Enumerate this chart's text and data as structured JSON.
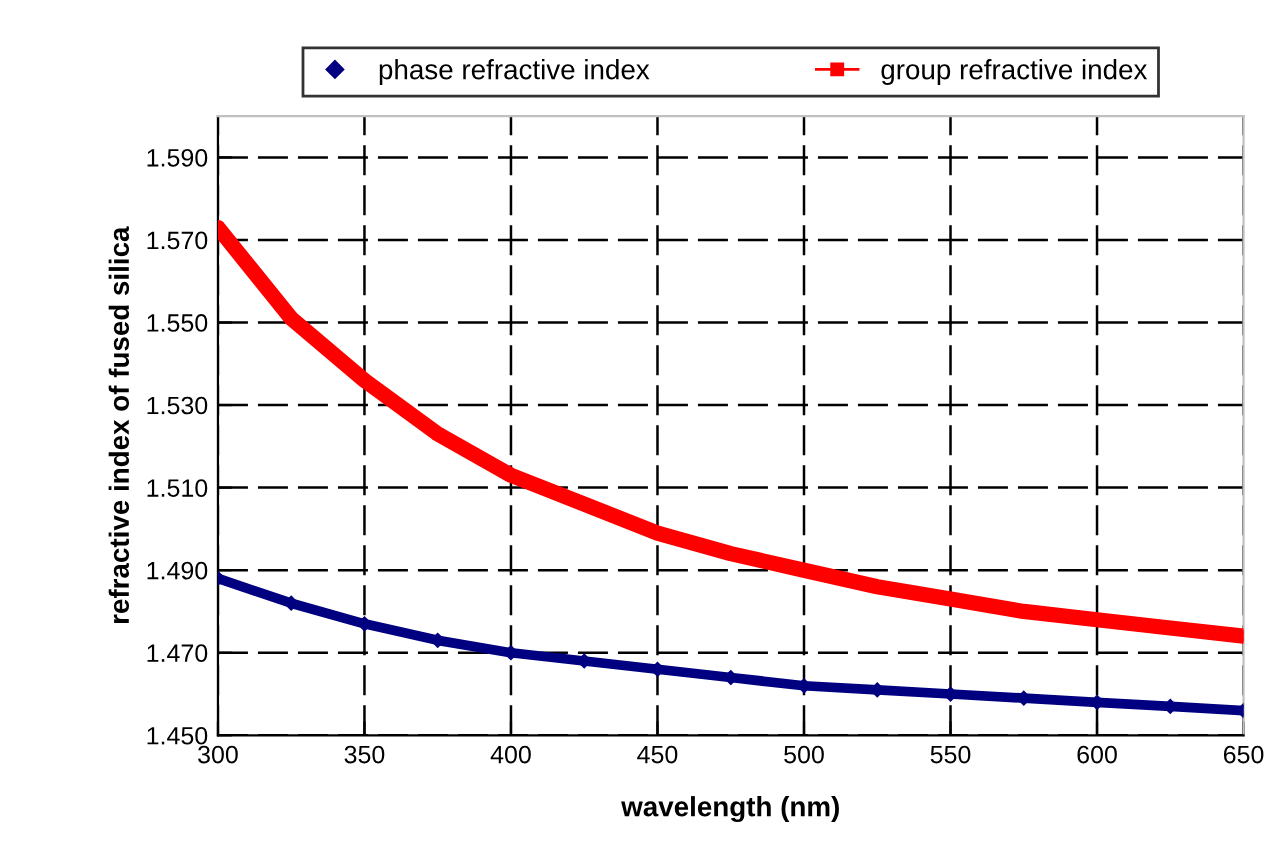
{
  "chart_data": {
    "type": "line",
    "xlabel": "wavelength (nm)",
    "ylabel": "refractive index of fused silica",
    "x": [
      300,
      325,
      350,
      375,
      400,
      425,
      450,
      475,
      500,
      525,
      550,
      575,
      600,
      625,
      650
    ],
    "series": [
      {
        "name": "phase refractive index",
        "color": "#000080",
        "marker": "diamond",
        "values": [
          1.488,
          1.482,
          1.477,
          1.473,
          1.47,
          1.468,
          1.466,
          1.464,
          1.462,
          1.461,
          1.46,
          1.459,
          1.458,
          1.457,
          1.456
        ]
      },
      {
        "name": "group refractive index",
        "color": "#ff0000",
        "marker": "square",
        "values": [
          1.573,
          1.551,
          1.536,
          1.523,
          1.513,
          1.506,
          1.499,
          1.494,
          1.49,
          1.486,
          1.483,
          1.48,
          1.478,
          1.476,
          1.474
        ]
      }
    ],
    "xlim": [
      300,
      650
    ],
    "xticks": [
      300,
      350,
      400,
      450,
      500,
      550,
      600,
      650
    ],
    "ylim": [
      1.45,
      1.6
    ],
    "yticks": [
      {
        "value": 1.45,
        "label": "1.450"
      },
      {
        "value": 1.47,
        "label": "1.470"
      },
      {
        "value": 1.49,
        "label": "1.490"
      },
      {
        "value": 1.51,
        "label": "1.510"
      },
      {
        "value": 1.53,
        "label": "1.530"
      },
      {
        "value": 1.55,
        "label": "1.550"
      },
      {
        "value": 1.57,
        "label": "1.570"
      },
      {
        "value": 1.59,
        "label": "1.590"
      }
    ],
    "grid": true,
    "legend": "top",
    "line_style": "solid"
  }
}
